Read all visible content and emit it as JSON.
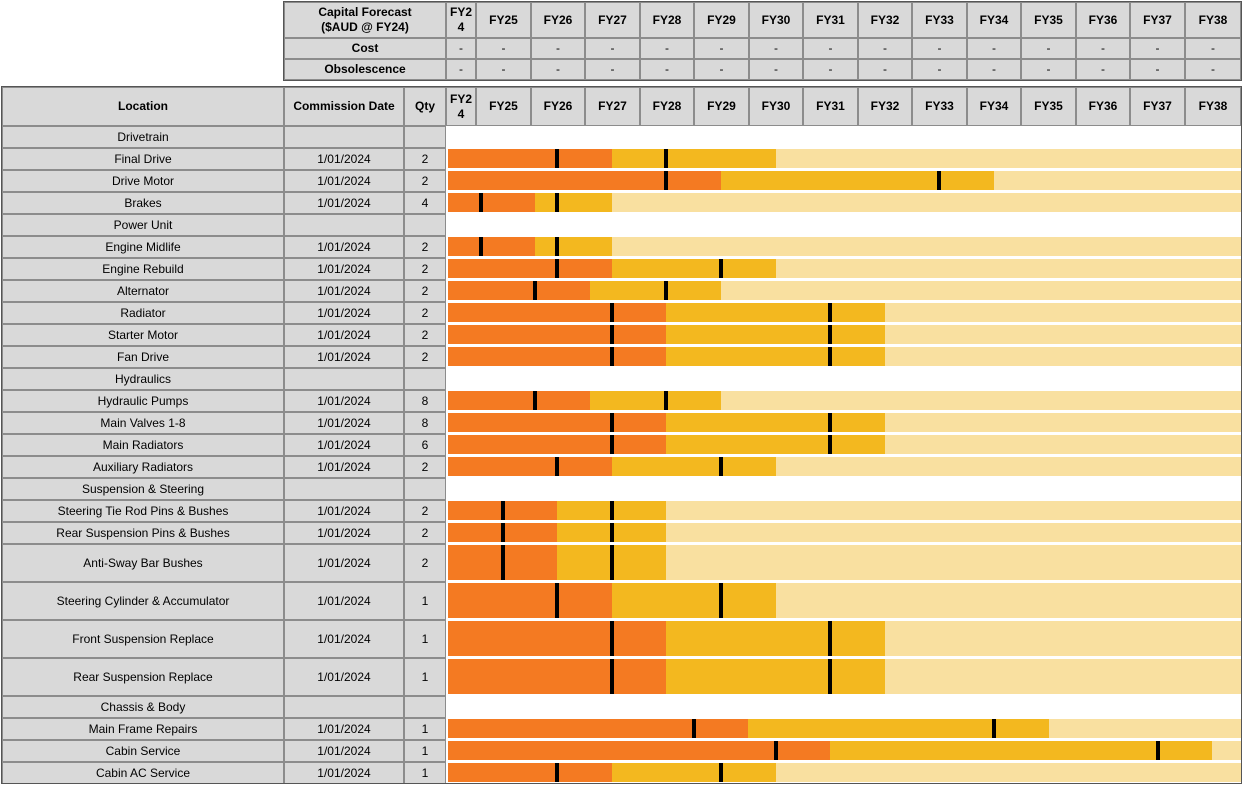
{
  "colors": {
    "phase1": "#f47a22",
    "phase2": "#f3b81f",
    "remaining": "#f9e0a0",
    "marker": "#000000",
    "header_bg": "#d9d9d9"
  },
  "top_header": {
    "title_line1": "Capital Forecast",
    "title_line2": "($AUD @ FY24)",
    "cost_label": "Cost",
    "obsolescence_label": "Obsolescence",
    "dash": "-"
  },
  "table_header": {
    "location": "Location",
    "commission_date": "Commission Date",
    "qty": "Qty"
  },
  "years": [
    "FY24",
    "FY25",
    "FY26",
    "FY27",
    "FY28",
    "FY29",
    "FY30",
    "FY31",
    "FY32",
    "FY33",
    "FY34",
    "FY35",
    "FY36",
    "FY37",
    "FY38"
  ],
  "year_first": {
    "line1": "FY2",
    "line2": "4"
  },
  "chart_data": {
    "type": "gantt",
    "x_unit": "financial year",
    "x_range": [
      "FY24",
      "FY38"
    ],
    "legend": "none",
    "rows": [
      {
        "location": "Drivetrain",
        "section": true
      },
      {
        "location": "Final Drive",
        "date": "1/01/2024",
        "qty": "2",
        "marks": [
          2,
          4
        ],
        "end": 6
      },
      {
        "location": "Drive Motor",
        "date": "1/01/2024",
        "qty": "2",
        "marks": [
          4,
          9
        ],
        "end": 10
      },
      {
        "location": "Brakes",
        "date": "1/01/2024",
        "qty": "4",
        "marks": [
          0.6,
          2
        ],
        "end": 3
      },
      {
        "location": "Power Unit",
        "section": true
      },
      {
        "location": "Engine Midlife",
        "date": "1/01/2024",
        "qty": "2",
        "marks": [
          0.6,
          2
        ],
        "end": 3
      },
      {
        "location": "Engine Rebuild",
        "date": "1/01/2024",
        "qty": "2",
        "marks": [
          2,
          5
        ],
        "end": 6
      },
      {
        "location": "Alternator",
        "date": "1/01/2024",
        "qty": "2",
        "marks": [
          1.6,
          4
        ],
        "end": 5
      },
      {
        "location": "Radiator",
        "date": "1/01/2024",
        "qty": "2",
        "marks": [
          3,
          7
        ],
        "end": 8
      },
      {
        "location": "Starter Motor",
        "date": "1/01/2024",
        "qty": "2",
        "marks": [
          3,
          7
        ],
        "end": 8
      },
      {
        "location": "Fan Drive",
        "date": "1/01/2024",
        "qty": "2",
        "marks": [
          3,
          7
        ],
        "end": 8
      },
      {
        "location": "Hydraulics",
        "section": true
      },
      {
        "location": "Hydraulic Pumps",
        "date": "1/01/2024",
        "qty": "8",
        "marks": [
          1.6,
          4
        ],
        "end": 5
      },
      {
        "location": "Main Valves 1-8",
        "date": "1/01/2024",
        "qty": "8",
        "marks": [
          3,
          7
        ],
        "end": 8
      },
      {
        "location": "Main Radiators",
        "date": "1/01/2024",
        "qty": "6",
        "marks": [
          3,
          7
        ],
        "end": 8
      },
      {
        "location": "Auxiliary Radiators",
        "date": "1/01/2024",
        "qty": "2",
        "marks": [
          2,
          5
        ],
        "end": 6
      },
      {
        "location": "Suspension & Steering",
        "section": true
      },
      {
        "location": "Steering Tie Rod Pins & Bushes",
        "date": "1/01/2024",
        "qty": "2",
        "marks": [
          1,
          3
        ],
        "end": 4
      },
      {
        "location": "Rear Suspension Pins & Bushes",
        "date": "1/01/2024",
        "qty": "2",
        "marks": [
          1,
          3
        ],
        "end": 4
      },
      {
        "location": "Anti-Sway Bar Bushes",
        "date": "1/01/2024",
        "qty": "2",
        "marks": [
          1,
          3
        ],
        "end": 4
      },
      {
        "location": "Steering Cylinder & Accumulator",
        "date": "1/01/2024",
        "qty": "1",
        "marks": [
          2,
          5
        ],
        "end": 6
      },
      {
        "location": "Front Suspension Replace",
        "date": "1/01/2024",
        "qty": "1",
        "marks": [
          3,
          7
        ],
        "end": 8
      },
      {
        "location": "Rear Suspension Replace",
        "date": "1/01/2024",
        "qty": "1",
        "marks": [
          3,
          7
        ],
        "end": 8
      },
      {
        "location": "Chassis & Body",
        "section": true
      },
      {
        "location": "Main Frame Repairs",
        "date": "1/01/2024",
        "qty": "1",
        "marks": [
          4.5,
          10
        ],
        "end": 11
      },
      {
        "location": "Cabin Service",
        "date": "1/01/2024",
        "qty": "1",
        "marks": [
          6,
          13
        ],
        "end": 14
      },
      {
        "location": "Cabin AC Service",
        "date": "1/01/2024",
        "qty": "1",
        "marks": [
          2,
          5
        ],
        "end": 6
      }
    ]
  }
}
